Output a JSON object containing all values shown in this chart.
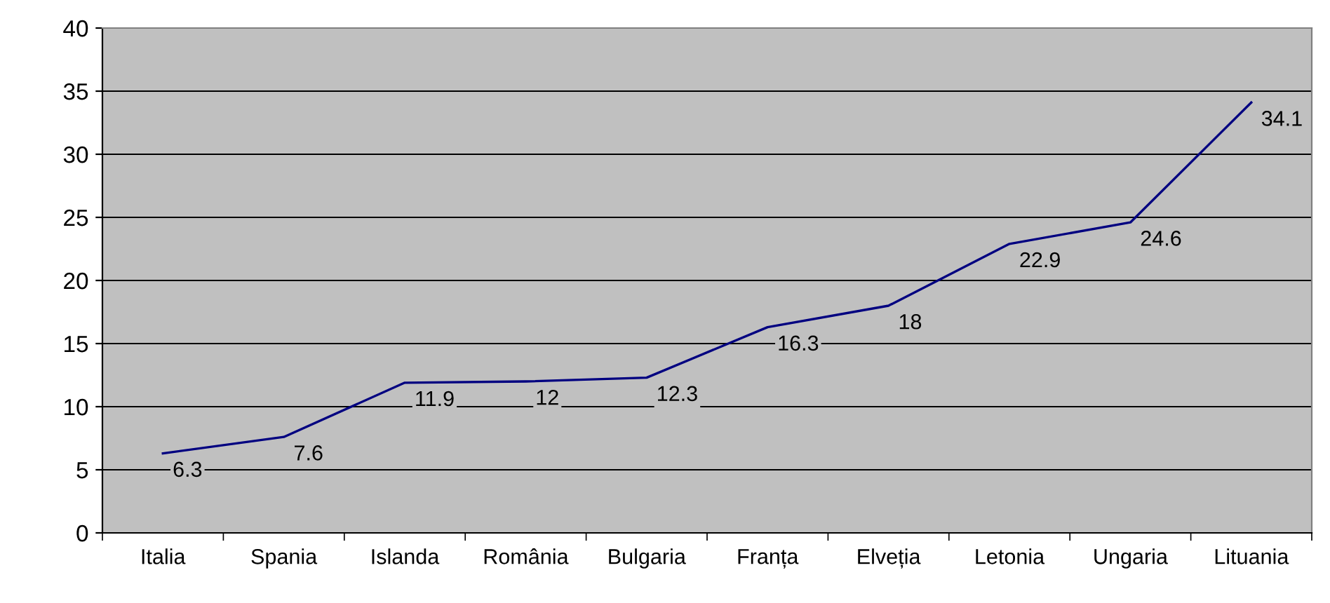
{
  "chart_data": {
    "type": "line",
    "categories": [
      "Italia",
      "Spania",
      "Islanda",
      "România",
      "Bulgaria",
      "Franța",
      "Elveția",
      "Letonia",
      "Ungaria",
      "Lituania"
    ],
    "series": [
      {
        "color": "#000080",
        "values": [
          6.3,
          7.6,
          11.9,
          12,
          12.3,
          16.3,
          18,
          22.9,
          24.6,
          34.1
        ]
      }
    ],
    "ylim": [
      0,
      40
    ],
    "yticks": [
      0,
      5,
      10,
      15,
      20,
      25,
      30,
      35,
      40
    ],
    "grid": "y",
    "data_labels": true,
    "legend": false,
    "marker": "none",
    "line_style": "solid"
  }
}
